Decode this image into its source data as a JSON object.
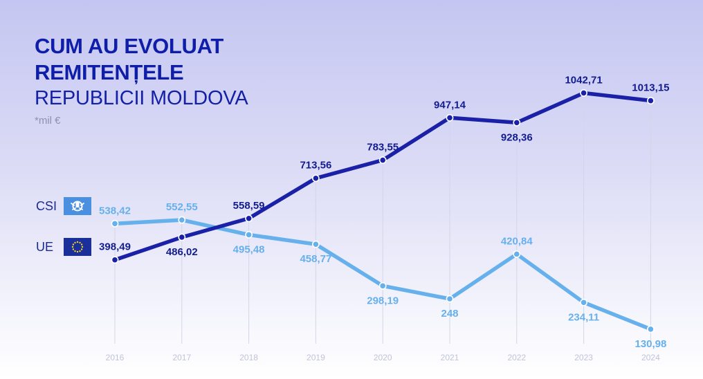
{
  "title": {
    "line1": "CUM AU EVOLUAT",
    "line2": "REMITENȚELE",
    "line3": "REPUBLICII MOLDOVA",
    "unit": "*mil €"
  },
  "legend": {
    "csi_label": "CSI",
    "ue_label": "UE"
  },
  "colors": {
    "ue": "#1a21a6",
    "csi": "#66b0ec",
    "title": "#0f1ea8",
    "gridline": "#d3d6e6"
  },
  "chart_data": {
    "type": "line",
    "categories": [
      "2016",
      "2017",
      "2018",
      "2019",
      "2020",
      "2021",
      "2022",
      "2023",
      "2024"
    ],
    "series": [
      {
        "name": "UE",
        "values": [
          398.49,
          486.02,
          558.59,
          713.56,
          783.55,
          947.14,
          928.36,
          1042.71,
          1013.15
        ],
        "labels": [
          "398,49",
          "486,02",
          "558,59",
          "713,56",
          "783,55",
          "947,14",
          "928,36",
          "1042,71",
          "1013,15"
        ]
      },
      {
        "name": "CSI",
        "values": [
          538.42,
          552.55,
          495.48,
          458.77,
          298.19,
          248,
          420.84,
          234.11,
          130.98
        ],
        "labels": [
          "538,42",
          "552,55",
          "495,48",
          "458,77",
          "298,19",
          "248",
          "420,84",
          "234,11",
          "130,98"
        ]
      }
    ],
    "ylim": [
      0,
      1100
    ],
    "grid": "vertical",
    "legend_position": "left"
  }
}
